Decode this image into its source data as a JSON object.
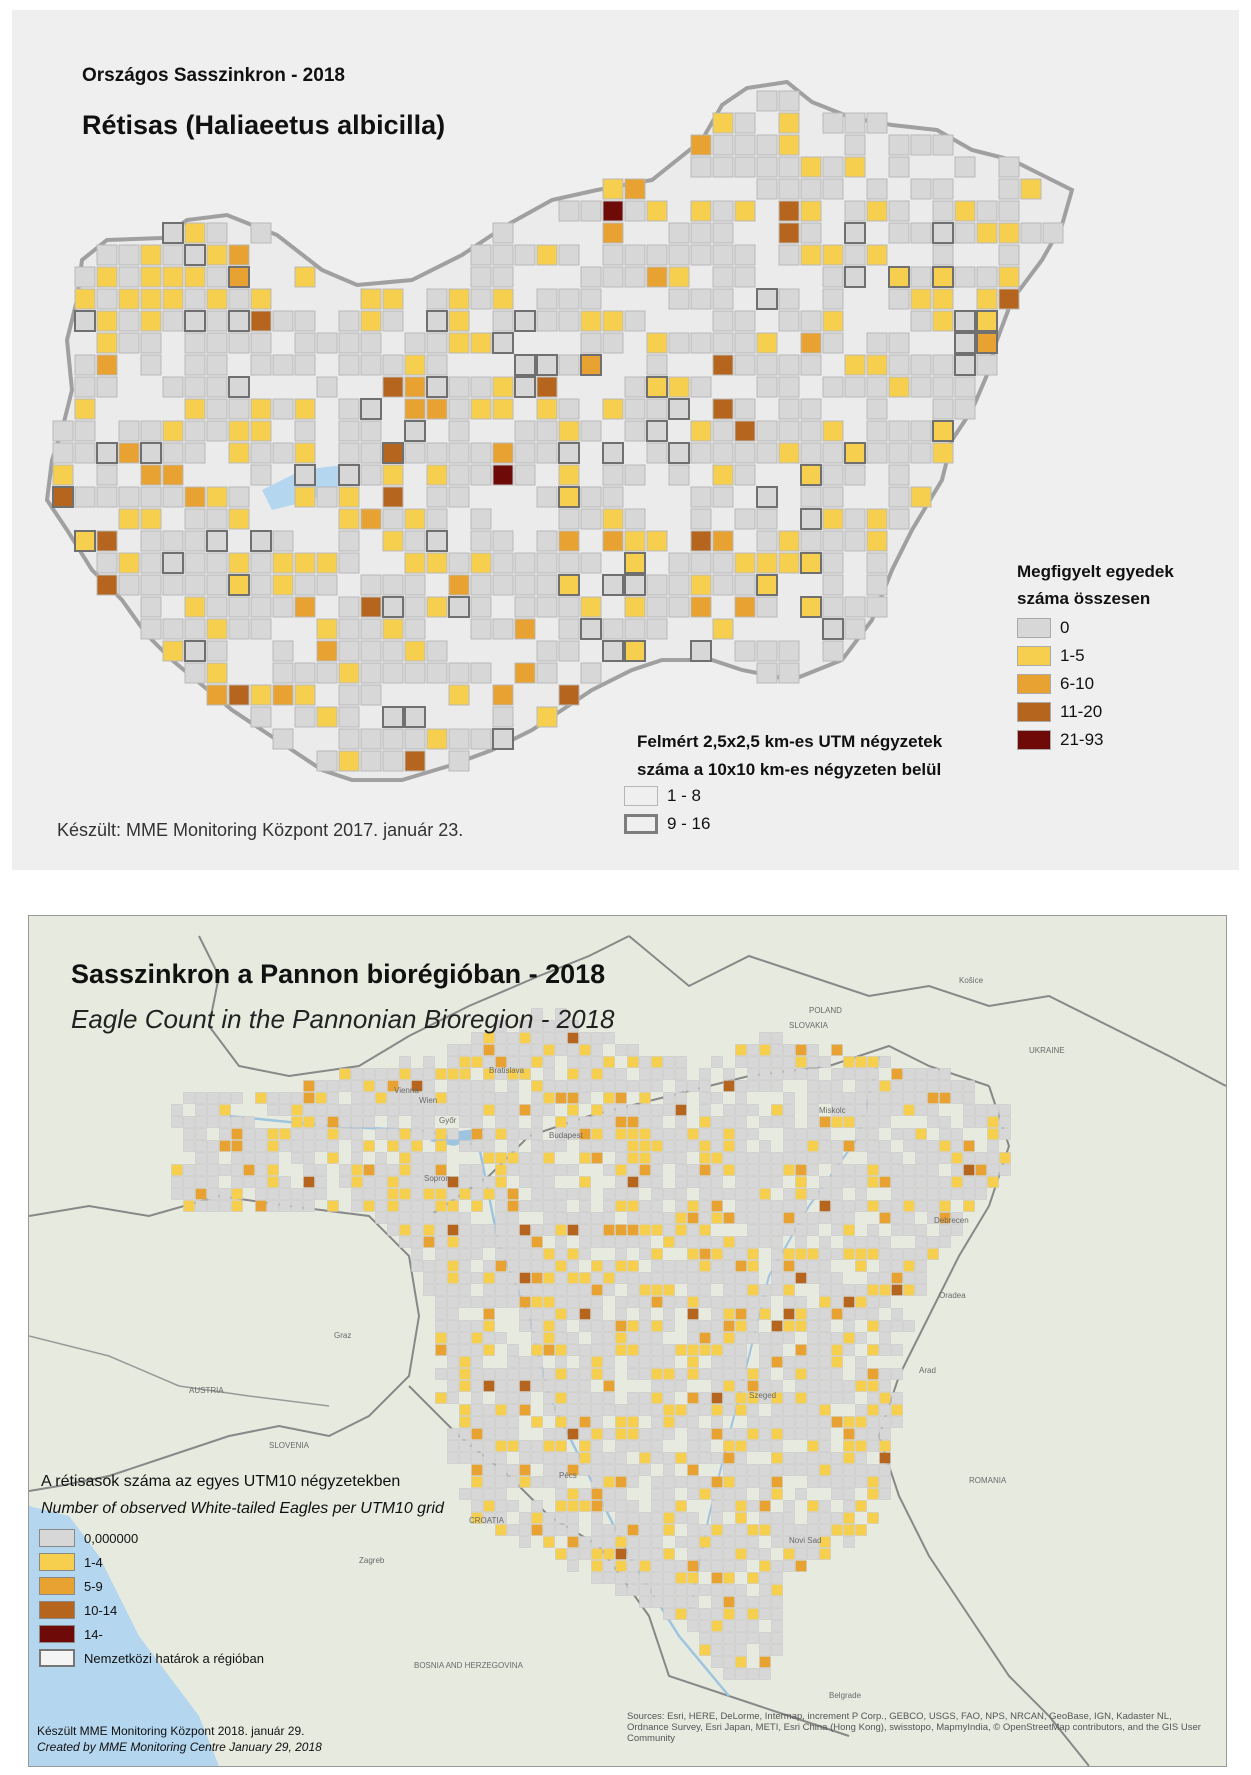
{
  "colors": {
    "c0": "#d7d7d7",
    "c1": "#f7cf4f",
    "c2": "#e8a232",
    "c3": "#b5651d",
    "c4": "#6e0b08",
    "thick_border": "#707070",
    "country_border": "#a0a0a0",
    "water": "#b4d6ef"
  },
  "map1": {
    "subtitle": "Országos Sasszinkron - 2018",
    "title": "Rétisas (Haliaeetus albicilla)",
    "legend": {
      "title_line1": "Megfigyelt egyedek",
      "title_line2": "száma összesen",
      "items": [
        {
          "label": "0",
          "color": "#d7d7d7"
        },
        {
          "label": "1-5",
          "color": "#f7cf4f"
        },
        {
          "label": "6-10",
          "color": "#e8a232"
        },
        {
          "label": "11-20",
          "color": "#b5651d"
        },
        {
          "label": "21-93",
          "color": "#6e0b08"
        }
      ]
    },
    "legend2": {
      "title_line1": "Felmért 2,5x2,5 km-es UTM négyzetek",
      "title_line2": "száma a 10x10 km-es négyzeten belül",
      "items": [
        {
          "label": "1 - 8"
        },
        {
          "label": "9 - 16"
        }
      ]
    },
    "credit": "Készült: MME Monitoring Központ 2017. január 23."
  },
  "map2": {
    "title": "Sasszinkron a Pannon biorégióban - 2018",
    "title_en": "Eagle Count in the Pannonian Bioregion - 2018",
    "legend_title": "A rétisasok száma az egyes UTM10 négyzetekben",
    "legend_title_en": "Number of observed White-tailed Eagles per UTM10 grid",
    "legend": [
      {
        "label": "0,000000",
        "color": "#d7d7d7"
      },
      {
        "label": "1-4",
        "color": "#f7cf4f"
      },
      {
        "label": "5-9",
        "color": "#e8a232"
      },
      {
        "label": "10-14",
        "color": "#b5651d"
      },
      {
        "label": "14-",
        "color": "#6e0b08"
      },
      {
        "label": "Nemzetközi határok a régióban",
        "color": ""
      }
    ],
    "credit": "Készült MME Monitoring Központ 2018. január 29.",
    "credit_en": "Created by MME Monitoring Centre January 29, 2018",
    "sources": "Sources: Esri, HERE, DeLorme, Intermap, increment P Corp., GEBCO, USGS, FAO, NPS, NRCAN, GeoBase, IGN, Kadaster NL, Ordnance Survey, Esri Japan, METI, Esri China (Hong Kong), swisstopo, MapmyIndia, © OpenStreetMap contributors, and the GIS User Community",
    "places": [
      "POLAND",
      "SLOVAKIA",
      "AUSTRIA",
      "SLOVENIA",
      "CROATIA",
      "ROMANIA",
      "BOSNIA AND HERZEGOVINA",
      "UKRAINE",
      "Bratislava",
      "Budapest",
      "Debrecen",
      "Szeged",
      "Pécs",
      "Zagreb",
      "Belgrade",
      "Wien",
      "Graz",
      "Novi Sad",
      "Oradea",
      "Arad",
      "Košice",
      "Győr",
      "Miskolc",
      "Sopron",
      "Vienna"
    ]
  }
}
